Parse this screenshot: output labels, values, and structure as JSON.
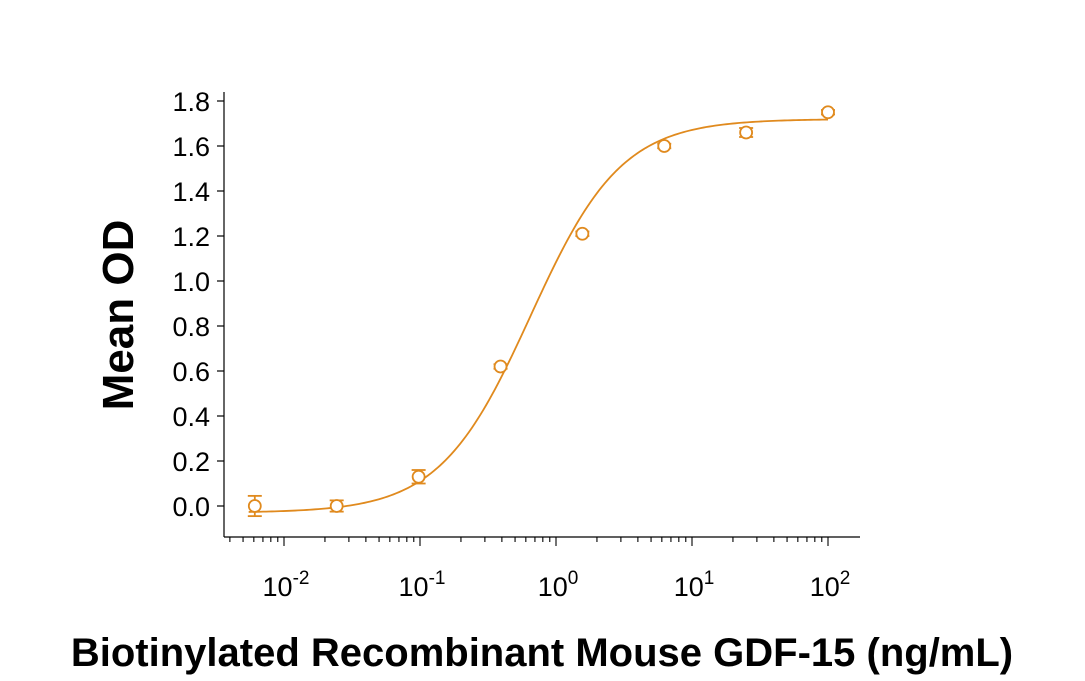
{
  "chart_data": {
    "type": "scatter",
    "title": "",
    "xlabel": "Biotinylated Recombinant Mouse GDF-15 (ng/mL)",
    "ylabel": "Mean OD",
    "x_scale": "log",
    "xlim": [
      0.004,
      170
    ],
    "ylim": [
      -0.13,
      1.85
    ],
    "grid": false,
    "legend": "none",
    "color": "#E08A1E",
    "y_ticks": [
      "0.0",
      "0.2",
      "0.4",
      "0.6",
      "0.8",
      "1.0",
      "1.2",
      "1.4",
      "1.6",
      "1.8"
    ],
    "x_ticks": [
      {
        "base": "10",
        "exp": "-2"
      },
      {
        "base": "10",
        "exp": "-1"
      },
      {
        "base": "10",
        "exp": "0"
      },
      {
        "base": "10",
        "exp": "1"
      },
      {
        "base": "10",
        "exp": "2"
      }
    ],
    "series": [
      {
        "points": [
          {
            "x": 0.0061,
            "y": 0.0,
            "err": 0.045
          },
          {
            "x": 0.0244,
            "y": 0.0,
            "err": 0.025
          },
          {
            "x": 0.0977,
            "y": 0.13,
            "err": 0.03
          },
          {
            "x": 0.391,
            "y": 0.62,
            "err": 0.01
          },
          {
            "x": 1.5625,
            "y": 1.21,
            "err": 0.01
          },
          {
            "x": 6.25,
            "y": 1.6,
            "err": 0.01
          },
          {
            "x": 25,
            "y": 1.66,
            "err": 0.02
          },
          {
            "x": 100,
            "y": 1.75,
            "err": 0.01
          }
        ],
        "fit": {
          "type": "4PL",
          "bottom": -0.03,
          "top": 1.72,
          "ec50": 0.65,
          "hill": 1.3,
          "x_range": [
            0.0055,
            100
          ]
        }
      }
    ]
  }
}
